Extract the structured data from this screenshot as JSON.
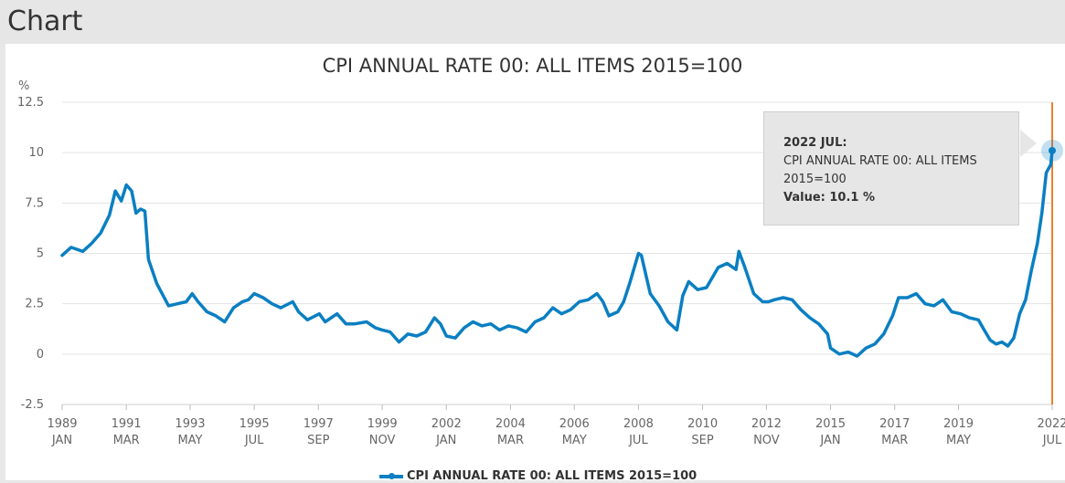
{
  "page": {
    "title": "Chart"
  },
  "tooltip": {
    "period": "2022 JUL:",
    "series": "CPI ANNUAL RATE 00: ALL ITEMS 2015=100",
    "value_text": "Value: 10.1 %"
  },
  "colors": {
    "line": "#0a7fc2",
    "cursor": "#f07f2a",
    "grid": "#e3e3e3"
  },
  "chart_data": {
    "type": "line",
    "title": "CPI ANNUAL RATE 00: ALL ITEMS 2015=100",
    "ylabel": "%",
    "xlabel": "",
    "ylim": [
      -2.5,
      12.5
    ],
    "yticks": [
      "12.5",
      "10",
      "7.5",
      "5",
      "2.5",
      "0",
      "-2.5"
    ],
    "x_ticks": [
      {
        "t": 1989.0,
        "year": "1989",
        "month": "JAN"
      },
      {
        "t": 1991.17,
        "year": "1991",
        "month": "MAR"
      },
      {
        "t": 1993.33,
        "year": "1993",
        "month": "MAY"
      },
      {
        "t": 1995.5,
        "year": "1995",
        "month": "JUL"
      },
      {
        "t": 1997.67,
        "year": "1997",
        "month": "SEP"
      },
      {
        "t": 1999.83,
        "year": "1999",
        "month": "NOV"
      },
      {
        "t": 2002.0,
        "year": "2002",
        "month": "JAN"
      },
      {
        "t": 2004.17,
        "year": "2004",
        "month": "MAR"
      },
      {
        "t": 2006.33,
        "year": "2006",
        "month": "MAY"
      },
      {
        "t": 2008.5,
        "year": "2008",
        "month": "JUL"
      },
      {
        "t": 2010.67,
        "year": "2010",
        "month": "SEP"
      },
      {
        "t": 2012.83,
        "year": "2012",
        "month": "NOV"
      },
      {
        "t": 2015.0,
        "year": "2015",
        "month": "JAN"
      },
      {
        "t": 2017.17,
        "year": "2017",
        "month": "MAR"
      },
      {
        "t": 2019.33,
        "year": "2019",
        "month": "MAY"
      },
      {
        "t": 2022.5,
        "year": "2022",
        "month": "JUL"
      }
    ],
    "series": [
      {
        "name": "CPI ANNUAL RATE 00: ALL ITEMS 2015=100",
        "points": [
          [
            1989.0,
            4.9
          ],
          [
            1989.3,
            5.3
          ],
          [
            1989.7,
            5.1
          ],
          [
            1990.0,
            5.5
          ],
          [
            1990.3,
            6.0
          ],
          [
            1990.6,
            6.9
          ],
          [
            1990.8,
            8.1
          ],
          [
            1991.0,
            7.6
          ],
          [
            1991.17,
            8.4
          ],
          [
            1991.35,
            8.1
          ],
          [
            1991.5,
            7.0
          ],
          [
            1991.65,
            7.2
          ],
          [
            1991.8,
            7.1
          ],
          [
            1991.92,
            4.7
          ],
          [
            1992.2,
            3.5
          ],
          [
            1992.6,
            2.4
          ],
          [
            1992.9,
            2.5
          ],
          [
            1993.2,
            2.6
          ],
          [
            1993.4,
            3.0
          ],
          [
            1993.6,
            2.6
          ],
          [
            1993.9,
            2.1
          ],
          [
            1994.2,
            1.9
          ],
          [
            1994.5,
            1.6
          ],
          [
            1994.8,
            2.3
          ],
          [
            1995.1,
            2.6
          ],
          [
            1995.3,
            2.7
          ],
          [
            1995.5,
            3.0
          ],
          [
            1995.8,
            2.8
          ],
          [
            1996.1,
            2.5
          ],
          [
            1996.4,
            2.3
          ],
          [
            1996.8,
            2.6
          ],
          [
            1997.0,
            2.1
          ],
          [
            1997.3,
            1.7
          ],
          [
            1997.7,
            2.0
          ],
          [
            1997.9,
            1.6
          ],
          [
            1998.3,
            2.0
          ],
          [
            1998.6,
            1.5
          ],
          [
            1998.9,
            1.5
          ],
          [
            1999.3,
            1.6
          ],
          [
            1999.6,
            1.3
          ],
          [
            1999.83,
            1.2
          ],
          [
            2000.1,
            1.1
          ],
          [
            2000.4,
            0.6
          ],
          [
            2000.7,
            1.0
          ],
          [
            2001.0,
            0.9
          ],
          [
            2001.3,
            1.1
          ],
          [
            2001.6,
            1.8
          ],
          [
            2001.8,
            1.5
          ],
          [
            2002.0,
            0.9
          ],
          [
            2002.3,
            0.8
          ],
          [
            2002.6,
            1.3
          ],
          [
            2002.9,
            1.6
          ],
          [
            2003.2,
            1.4
          ],
          [
            2003.5,
            1.5
          ],
          [
            2003.8,
            1.2
          ],
          [
            2004.1,
            1.4
          ],
          [
            2004.4,
            1.3
          ],
          [
            2004.7,
            1.1
          ],
          [
            2005.0,
            1.6
          ],
          [
            2005.3,
            1.8
          ],
          [
            2005.6,
            2.3
          ],
          [
            2005.9,
            2.0
          ],
          [
            2006.2,
            2.2
          ],
          [
            2006.5,
            2.6
          ],
          [
            2006.8,
            2.7
          ],
          [
            2007.1,
            3.0
          ],
          [
            2007.3,
            2.6
          ],
          [
            2007.5,
            1.9
          ],
          [
            2007.8,
            2.1
          ],
          [
            2008.0,
            2.6
          ],
          [
            2008.2,
            3.5
          ],
          [
            2008.5,
            5.0
          ],
          [
            2008.6,
            4.9
          ],
          [
            2008.9,
            3.0
          ],
          [
            2009.2,
            2.4
          ],
          [
            2009.5,
            1.6
          ],
          [
            2009.8,
            1.2
          ],
          [
            2010.0,
            2.9
          ],
          [
            2010.2,
            3.6
          ],
          [
            2010.5,
            3.2
          ],
          [
            2010.8,
            3.3
          ],
          [
            2011.0,
            3.8
          ],
          [
            2011.2,
            4.3
          ],
          [
            2011.5,
            4.5
          ],
          [
            2011.8,
            4.2
          ],
          [
            2011.9,
            5.1
          ],
          [
            2012.1,
            4.3
          ],
          [
            2012.4,
            3.0
          ],
          [
            2012.7,
            2.6
          ],
          [
            2012.9,
            2.6
          ],
          [
            2013.1,
            2.7
          ],
          [
            2013.4,
            2.8
          ],
          [
            2013.7,
            2.7
          ],
          [
            2014.0,
            2.2
          ],
          [
            2014.3,
            1.8
          ],
          [
            2014.6,
            1.5
          ],
          [
            2014.9,
            1.0
          ],
          [
            2015.0,
            0.3
          ],
          [
            2015.3,
            0.0
          ],
          [
            2015.6,
            0.1
          ],
          [
            2015.9,
            -0.1
          ],
          [
            2016.2,
            0.3
          ],
          [
            2016.5,
            0.5
          ],
          [
            2016.8,
            1.0
          ],
          [
            2017.1,
            1.9
          ],
          [
            2017.3,
            2.8
          ],
          [
            2017.6,
            2.8
          ],
          [
            2017.9,
            3.0
          ],
          [
            2018.2,
            2.5
          ],
          [
            2018.5,
            2.4
          ],
          [
            2018.8,
            2.7
          ],
          [
            2019.1,
            2.1
          ],
          [
            2019.4,
            2.0
          ],
          [
            2019.7,
            1.8
          ],
          [
            2020.0,
            1.7
          ],
          [
            2020.2,
            1.2
          ],
          [
            2020.4,
            0.7
          ],
          [
            2020.6,
            0.5
          ],
          [
            2020.8,
            0.6
          ],
          [
            2021.0,
            0.4
          ],
          [
            2021.2,
            0.8
          ],
          [
            2021.4,
            2.0
          ],
          [
            2021.6,
            2.7
          ],
          [
            2021.8,
            4.2
          ],
          [
            2022.0,
            5.5
          ],
          [
            2022.15,
            7.0
          ],
          [
            2022.3,
            9.0
          ],
          [
            2022.45,
            9.4
          ],
          [
            2022.5,
            10.1
          ]
        ]
      }
    ],
    "cursor_x": 2022.5,
    "grid": true,
    "legend": "bottom"
  }
}
